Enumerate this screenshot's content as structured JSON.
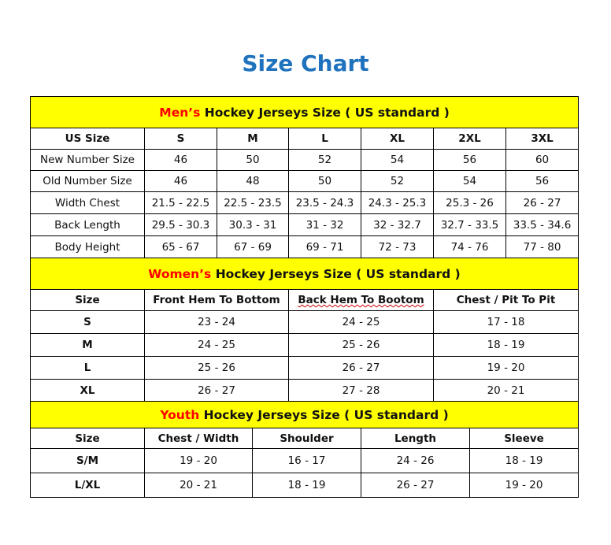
{
  "title": "Size Chart",
  "sections": [
    {
      "id": "men",
      "heading_highlight": "Men’s",
      "heading_rest": " Hockey Jerseys Size ( US standard )",
      "columns": [
        "US Size",
        "S",
        "M",
        "L",
        "XL",
        "2XL",
        "3XL"
      ],
      "rows": [
        [
          "New Number Size",
          "46",
          "50",
          "52",
          "54",
          "56",
          "60"
        ],
        [
          "Old Number Size",
          "46",
          "48",
          "50",
          "52",
          "54",
          "56"
        ],
        [
          "Width Chest",
          "21.5 - 22.5",
          "22.5 - 23.5",
          "23.5 - 24.3",
          "24.3 - 25.3",
          "25.3 - 26",
          "26 - 27"
        ],
        [
          "Back Length",
          "29.5 - 30.3",
          "30.3 - 31",
          "31 - 32",
          "32 - 32.7",
          "32.7 - 33.5",
          "33.5 - 34.6"
        ],
        [
          "Body Height",
          "65 - 67",
          "67 - 69",
          "69 - 71",
          "72 - 73",
          "74 - 76",
          "77 - 80"
        ]
      ]
    },
    {
      "id": "women",
      "heading_highlight": "Women’s",
      "heading_rest": " Hockey Jerseys Size ( US standard )",
      "columns": [
        "Size",
        "Front Hem To Bottom",
        "Back Hem To Bootom",
        "Chest / Pit To Pit"
      ],
      "rows": [
        [
          "S",
          "23 - 24",
          "24 - 25",
          "17 - 18"
        ],
        [
          "M",
          "24 - 25",
          "25 - 26",
          "18 - 19"
        ],
        [
          "L",
          "25 - 26",
          "26 - 27",
          "19 - 20"
        ],
        [
          "XL",
          "26 - 27",
          "27 - 28",
          "20 - 21"
        ]
      ]
    },
    {
      "id": "youth",
      "heading_highlight": "Youth",
      "heading_rest": " Hockey Jerseys Size ( US standard )",
      "columns": [
        "Size",
        "Chest / Width",
        "Shoulder",
        "Length",
        "Sleeve"
      ],
      "rows": [
        [
          "S/M",
          "19 - 20",
          "16 - 17",
          "24 - 26",
          "18 - 19"
        ],
        [
          "L/XL",
          "20 - 21",
          "18 - 19",
          "26 - 27",
          "19 - 20"
        ]
      ]
    }
  ]
}
